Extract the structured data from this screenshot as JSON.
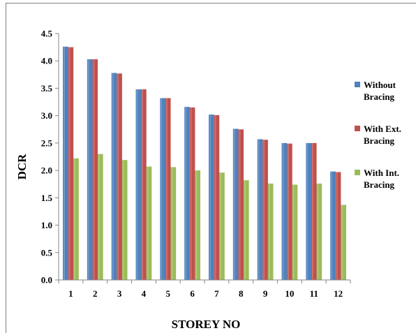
{
  "chart_data": {
    "type": "bar",
    "title": "",
    "xlabel": "STOREY NO",
    "ylabel": "DCR",
    "categories": [
      "1",
      "2",
      "3",
      "4",
      "5",
      "6",
      "7",
      "8",
      "9",
      "10",
      "11",
      "12"
    ],
    "ylim": [
      0,
      4.5
    ],
    "yticks": [
      "0.0",
      "0.5",
      "1.0",
      "1.5",
      "2.0",
      "2.5",
      "3.0",
      "3.5",
      "4.0",
      "4.5"
    ],
    "grid": false,
    "legend_position": "right",
    "series": [
      {
        "name": "Without Bracing",
        "legend_lines": [
          "Without",
          "Bracing"
        ],
        "color": "#4F81BD",
        "values": [
          4.26,
          4.03,
          3.78,
          3.48,
          3.32,
          3.16,
          3.02,
          2.76,
          2.57,
          2.5,
          2.5,
          1.98
        ]
      },
      {
        "name": "With Ext. Bracing",
        "legend_lines": [
          "With Ext.",
          "Bracing"
        ],
        "color": "#C0504D",
        "values": [
          4.25,
          4.03,
          3.77,
          3.48,
          3.32,
          3.15,
          3.01,
          2.75,
          2.56,
          2.49,
          2.5,
          1.97
        ]
      },
      {
        "name": "With Int. Bracing",
        "legend_lines": [
          "With Int.",
          "Bracing"
        ],
        "color": "#9BBB59",
        "values": [
          2.22,
          2.3,
          2.19,
          2.07,
          2.06,
          2.0,
          1.96,
          1.82,
          1.76,
          1.74,
          1.76,
          1.37
        ]
      }
    ]
  }
}
